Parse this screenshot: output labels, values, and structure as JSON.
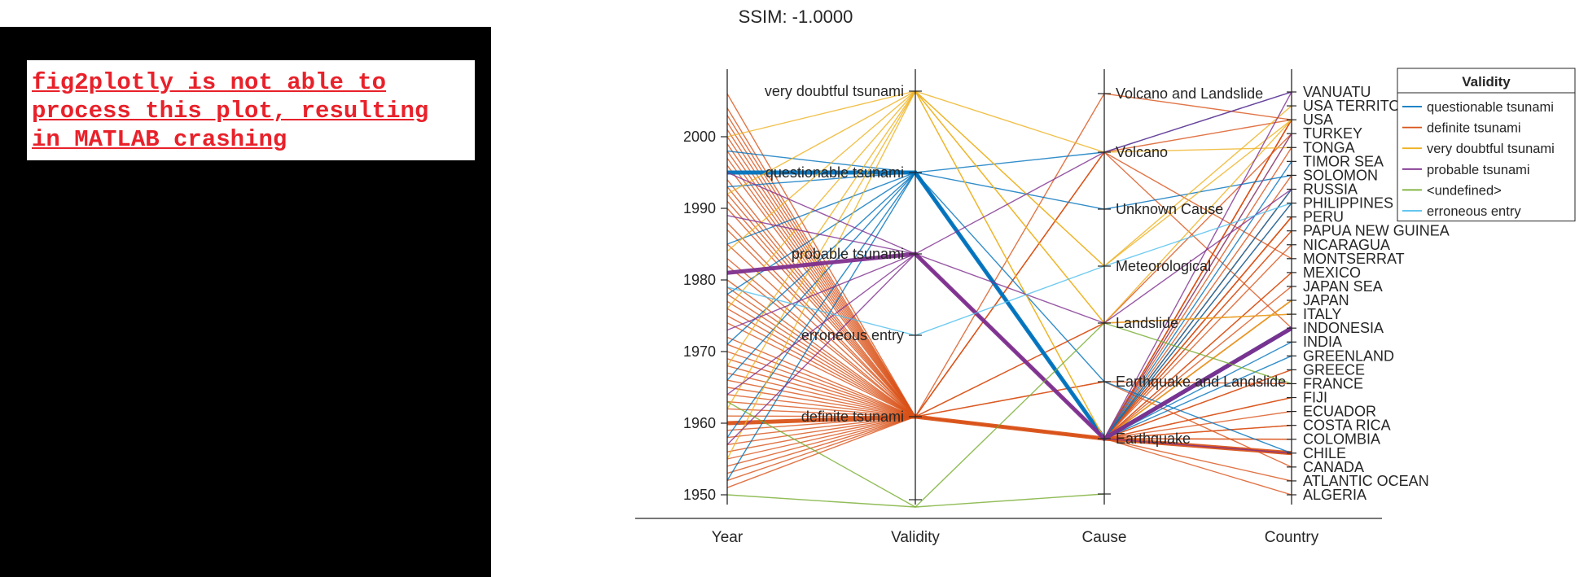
{
  "notice": {
    "text": "fig2plotly is not able to\nprocess this plot, resulting\nin MATLAB crashing",
    "color": "#e8212a"
  },
  "chart_data": {
    "type": "parallel-coordinates",
    "title": "SSIM: -1.0000",
    "coordinates": [
      "Year",
      "Validity",
      "Cause",
      "Country"
    ],
    "year_ticks": [
      1950,
      1960,
      1970,
      1980,
      1990,
      2000
    ],
    "year_range": [
      1948,
      2009
    ],
    "validity_categories": [
      "very doubtful tsunami",
      "questionable tsunami",
      "probable tsunami",
      "erroneous entry",
      "definite tsunami"
    ],
    "cause_categories": [
      "Volcano and Landslide",
      "Volcano",
      "Unknown Cause",
      "Meteorological",
      "Landslide",
      "Earthquake and Landslide",
      "Earthquake"
    ],
    "country_categories": [
      "VANUATU",
      "USA TERRITORY",
      "USA",
      "TURKEY",
      "TONGA",
      "TIMOR SEA",
      "SOLOMON",
      "RUSSIA",
      "PHILIPPINES",
      "PERU",
      "PAPUA NEW GUINEA",
      "NICARAGUA",
      "MONTSERRAT",
      "MEXICO",
      "JAPAN SEA",
      "JAPAN",
      "ITALY",
      "INDONESIA",
      "INDIA",
      "GREENLAND",
      "GREECE",
      "FRANCE",
      "FIJI",
      "ECUADOR",
      "COSTA RICA",
      "COLOMBIA",
      "CHILE",
      "CANADA",
      "ATLANTIC OCEAN",
      "ALGERIA"
    ],
    "legend": {
      "title": "Validity",
      "entries": [
        {
          "name": "questionable tsunami",
          "color": "#0072bd"
        },
        {
          "name": "definite tsunami",
          "color": "#d95319"
        },
        {
          "name": "very doubtful tsunami",
          "color": "#edb120"
        },
        {
          "name": "probable tsunami",
          "color": "#7e2f8e"
        },
        {
          "name": "<undefined>",
          "color": "#77ac30"
        },
        {
          "name": "erroneous entry",
          "color": "#4dbeee"
        }
      ],
      "placement": "top-right"
    },
    "records": [
      {
        "year": 2006,
        "validity": "definite tsunami",
        "cause": "Volcano and Landslide",
        "country": "USA",
        "weight": 1
      },
      {
        "year": 2004,
        "validity": "definite tsunami",
        "cause": "Earthquake",
        "country": "INDONESIA",
        "weight": 1
      },
      {
        "year": 2003,
        "validity": "definite tsunami",
        "cause": "Earthquake",
        "country": "JAPAN",
        "weight": 1
      },
      {
        "year": 2002,
        "validity": "definite tsunami",
        "cause": "Earthquake",
        "country": "PAPUA NEW GUINEA",
        "weight": 1
      },
      {
        "year": 2001,
        "validity": "definite tsunami",
        "cause": "Earthquake",
        "country": "PERU",
        "weight": 1
      },
      {
        "year": 2000,
        "validity": "definite tsunami",
        "cause": "Earthquake",
        "country": "RUSSIA",
        "weight": 1
      },
      {
        "year": 1999,
        "validity": "definite tsunami",
        "cause": "Landslide",
        "country": "TURKEY",
        "weight": 1
      },
      {
        "year": 1998,
        "validity": "definite tsunami",
        "cause": "Earthquake",
        "country": "PAPUA NEW GUINEA",
        "weight": 1
      },
      {
        "year": 1997,
        "validity": "definite tsunami",
        "cause": "Earthquake",
        "country": "MEXICO",
        "weight": 1
      },
      {
        "year": 1996,
        "validity": "definite tsunami",
        "cause": "Earthquake",
        "country": "PERU",
        "weight": 1
      },
      {
        "year": 1994,
        "validity": "definite tsunami",
        "cause": "Earthquake",
        "country": "INDONESIA",
        "weight": 1
      },
      {
        "year": 1993,
        "validity": "definite tsunami",
        "cause": "Earthquake",
        "country": "JAPAN SEA",
        "weight": 1
      },
      {
        "year": 1992,
        "validity": "definite tsunami",
        "cause": "Earthquake",
        "country": "NICARAGUA",
        "weight": 1
      },
      {
        "year": 1991,
        "validity": "definite tsunami",
        "cause": "Earthquake",
        "country": "COSTA RICA",
        "weight": 1
      },
      {
        "year": 1990,
        "validity": "definite tsunami",
        "cause": "Volcano",
        "country": "MONTSERRAT",
        "weight": 1
      },
      {
        "year": 1988,
        "validity": "definite tsunami",
        "cause": "Earthquake",
        "country": "ECUADOR",
        "weight": 1
      },
      {
        "year": 1987,
        "validity": "definite tsunami",
        "cause": "Earthquake",
        "country": "COLOMBIA",
        "weight": 1
      },
      {
        "year": 1985,
        "validity": "definite tsunami",
        "cause": "Earthquake",
        "country": "CHILE",
        "weight": 1
      },
      {
        "year": 1983,
        "validity": "definite tsunami",
        "cause": "Earthquake",
        "country": "JAPAN",
        "weight": 1
      },
      {
        "year": 1982,
        "validity": "definite tsunami",
        "cause": "Earthquake",
        "country": "TONGA",
        "weight": 1
      },
      {
        "year": 1980,
        "validity": "definite tsunami",
        "cause": "Volcano",
        "country": "USA",
        "weight": 1
      },
      {
        "year": 1979,
        "validity": "definite tsunami",
        "cause": "Earthquake",
        "country": "COLOMBIA",
        "weight": 1
      },
      {
        "year": 1978,
        "validity": "definite tsunami",
        "cause": "Earthquake and Landslide",
        "country": "CANADA",
        "weight": 1
      },
      {
        "year": 1977,
        "validity": "definite tsunami",
        "cause": "Earthquake",
        "country": "INDONESIA",
        "weight": 1
      },
      {
        "year": 1976,
        "validity": "definite tsunami",
        "cause": "Earthquake",
        "country": "PHILIPPINES",
        "weight": 1
      },
      {
        "year": 1975,
        "validity": "definite tsunami",
        "cause": "Earthquake",
        "country": "USA",
        "weight": 1
      },
      {
        "year": 1974,
        "validity": "definite tsunami",
        "cause": "Earthquake",
        "country": "PERU",
        "weight": 1
      },
      {
        "year": 1972,
        "validity": "definite tsunami",
        "cause": "Earthquake",
        "country": "ALGERIA",
        "weight": 1
      },
      {
        "year": 1971,
        "validity": "definite tsunami",
        "cause": "Earthquake",
        "country": "SOLOMON",
        "weight": 1
      },
      {
        "year": 1970,
        "validity": "definite tsunami",
        "cause": "Earthquake",
        "country": "PERU",
        "weight": 1
      },
      {
        "year": 1969,
        "validity": "definite tsunami",
        "cause": "Earthquake",
        "country": "ATLANTIC OCEAN",
        "weight": 1
      },
      {
        "year": 1968,
        "validity": "definite tsunami",
        "cause": "Earthquake",
        "country": "JAPAN",
        "weight": 1
      },
      {
        "year": 1967,
        "validity": "definite tsunami",
        "cause": "Earthquake",
        "country": "GREECE",
        "weight": 1
      },
      {
        "year": 1966,
        "validity": "definite tsunami",
        "cause": "Earthquake",
        "country": "FIJI",
        "weight": 1
      },
      {
        "year": 1965,
        "validity": "definite tsunami",
        "cause": "Earthquake",
        "country": "USA",
        "weight": 1
      },
      {
        "year": 1964,
        "validity": "definite tsunami",
        "cause": "Earthquake",
        "country": "USA",
        "weight": 1
      },
      {
        "year": 1963,
        "validity": "definite tsunami",
        "cause": "Landslide",
        "country": "ITALY",
        "weight": 1
      },
      {
        "year": 1962,
        "validity": "definite tsunami",
        "cause": "Earthquake",
        "country": "MEXICO",
        "weight": 1
      },
      {
        "year": 1961,
        "validity": "definite tsunami",
        "cause": "Volcano",
        "country": "INDONESIA",
        "weight": 1
      },
      {
        "year": 1960,
        "validity": "definite tsunami",
        "cause": "Earthquake",
        "country": "CHILE",
        "weight": 3
      },
      {
        "year": 1959,
        "validity": "definite tsunami",
        "cause": "Earthquake",
        "country": "COSTA RICA",
        "weight": 1
      },
      {
        "year": 1958,
        "validity": "definite tsunami",
        "cause": "Earthquake",
        "country": "USA",
        "weight": 1
      },
      {
        "year": 1957,
        "validity": "definite tsunami",
        "cause": "Earthquake",
        "country": "USA",
        "weight": 1
      },
      {
        "year": 1956,
        "validity": "definite tsunami",
        "cause": "Earthquake",
        "country": "GREECE",
        "weight": 1
      },
      {
        "year": 1955,
        "validity": "definite tsunami",
        "cause": "Earthquake",
        "country": "JAPAN",
        "weight": 1
      },
      {
        "year": 1954,
        "validity": "definite tsunami",
        "cause": "Earthquake and Landslide",
        "country": "FRANCE",
        "weight": 1
      },
      {
        "year": 1953,
        "validity": "definite tsunami",
        "cause": "Earthquake",
        "country": "FIJI",
        "weight": 1
      },
      {
        "year": 1952,
        "validity": "definite tsunami",
        "cause": "Earthquake",
        "country": "RUSSIA",
        "weight": 1
      },
      {
        "year": 1951,
        "validity": "definite tsunami",
        "cause": "Earthquake",
        "country": "CHILE",
        "weight": 1
      },
      {
        "year": 1998,
        "validity": "questionable tsunami",
        "cause": "Unknown Cause",
        "country": "SOLOMON",
        "weight": 1
      },
      {
        "year": 1995,
        "validity": "questionable tsunami",
        "cause": "Earthquake",
        "country": "INDONESIA",
        "weight": 3
      },
      {
        "year": 1993,
        "validity": "questionable tsunami",
        "cause": "Volcano",
        "country": "VANUATU",
        "weight": 1
      },
      {
        "year": 1985,
        "validity": "questionable tsunami",
        "cause": "Earthquake",
        "country": "GREENLAND",
        "weight": 1
      },
      {
        "year": 1978,
        "validity": "questionable tsunami",
        "cause": "Earthquake",
        "country": "INDIA",
        "weight": 1
      },
      {
        "year": 1971,
        "validity": "questionable tsunami",
        "cause": "Earthquake",
        "country": "PHILIPPINES",
        "weight": 1
      },
      {
        "year": 1966,
        "validity": "questionable tsunami",
        "cause": "Earthquake",
        "country": "RUSSIA",
        "weight": 1
      },
      {
        "year": 1958,
        "validity": "questionable tsunami",
        "cause": "Earthquake",
        "country": "TIMOR SEA",
        "weight": 1
      },
      {
        "year": 1952,
        "validity": "questionable tsunami",
        "cause": "Earthquake and Landslide",
        "country": "CHILE",
        "weight": 1
      },
      {
        "year": 2000,
        "validity": "very doubtful tsunami",
        "cause": "Meteorological",
        "country": "USA TERRITORY",
        "weight": 1
      },
      {
        "year": 1992,
        "validity": "very doubtful tsunami",
        "cause": "Landslide",
        "country": "USA",
        "weight": 1
      },
      {
        "year": 1984,
        "validity": "very doubtful tsunami",
        "cause": "Earthquake",
        "country": "TURKEY",
        "weight": 1
      },
      {
        "year": 1976,
        "validity": "very doubtful tsunami",
        "cause": "Volcano",
        "country": "TONGA",
        "weight": 1
      },
      {
        "year": 1968,
        "validity": "very doubtful tsunami",
        "cause": "Meteorological",
        "country": "USA",
        "weight": 1
      },
      {
        "year": 1962,
        "validity": "very doubtful tsunami",
        "cause": "Earthquake",
        "country": "JAPAN",
        "weight": 1
      },
      {
        "year": 1955,
        "validity": "very doubtful tsunami",
        "cause": "Landslide",
        "country": "ITALY",
        "weight": 1
      },
      {
        "year": 1995,
        "validity": "probable tsunami",
        "cause": "Volcano",
        "country": "VANUATU",
        "weight": 1
      },
      {
        "year": 1989,
        "validity": "probable tsunami",
        "cause": "Earthquake",
        "country": "CHILE",
        "weight": 1
      },
      {
        "year": 1981,
        "validity": "probable tsunami",
        "cause": "Earthquake",
        "country": "INDONESIA",
        "weight": 3
      },
      {
        "year": 1973,
        "validity": "probable tsunami",
        "cause": "Landslide",
        "country": "RUSSIA",
        "weight": 1
      },
      {
        "year": 1964,
        "validity": "probable tsunami",
        "cause": "Earthquake",
        "country": "TURKEY",
        "weight": 1
      },
      {
        "year": 1957,
        "validity": "probable tsunami",
        "cause": "Earthquake",
        "country": "VANUATU",
        "weight": 1
      },
      {
        "year": 1963,
        "validity": "<undefined>",
        "cause": "Landslide",
        "country": "FRANCE",
        "weight": 1
      },
      {
        "year": 1950,
        "validity": "<undefined>",
        "cause": "<undefined>",
        "country": "<undefined>",
        "weight": 1
      },
      {
        "year": 1979,
        "validity": "erroneous entry",
        "cause": "Meteorological",
        "country": "PHILIPPINES",
        "weight": 1
      }
    ]
  }
}
